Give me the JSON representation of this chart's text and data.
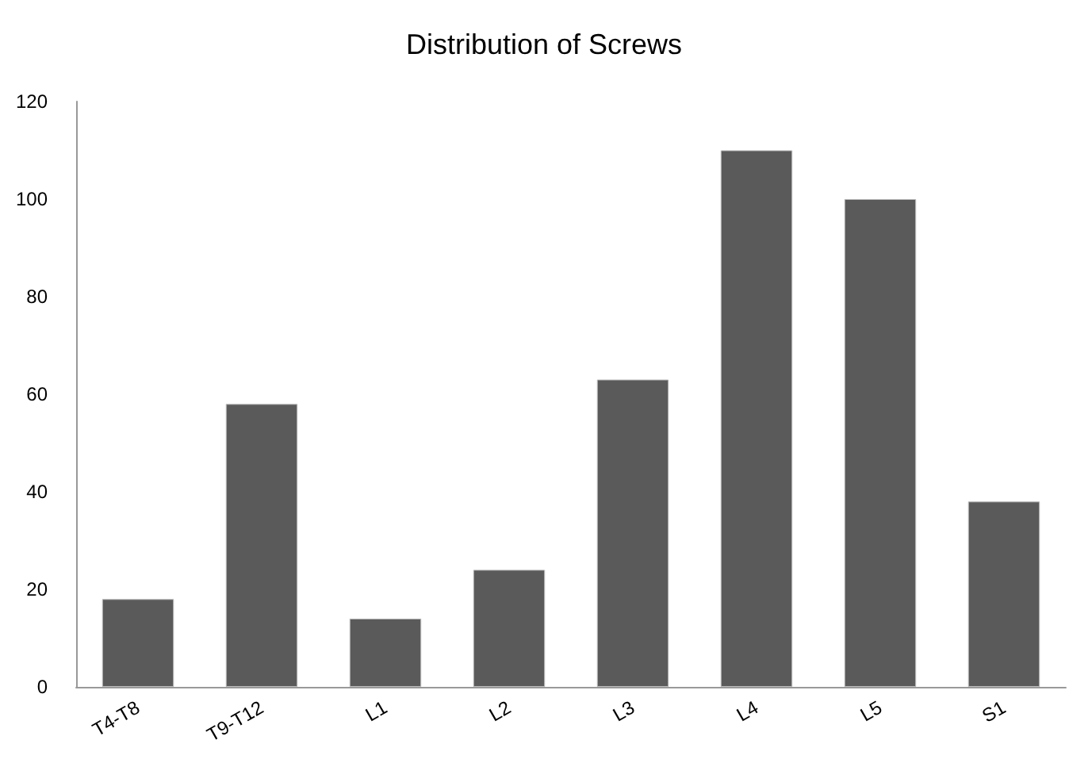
{
  "chart_data": {
    "type": "bar",
    "title": "Distribution of Screws",
    "categories": [
      "T4-T8",
      "T9-T12",
      "L1",
      "L2",
      "L3",
      "L4",
      "L5",
      "S1"
    ],
    "values": [
      18,
      58,
      14,
      24,
      63,
      110,
      100,
      38
    ],
    "color": "#5a5a5a",
    "ylim": [
      0,
      120
    ],
    "yticks": [
      0,
      20,
      40,
      60,
      80,
      100,
      120
    ],
    "grid": false
  }
}
